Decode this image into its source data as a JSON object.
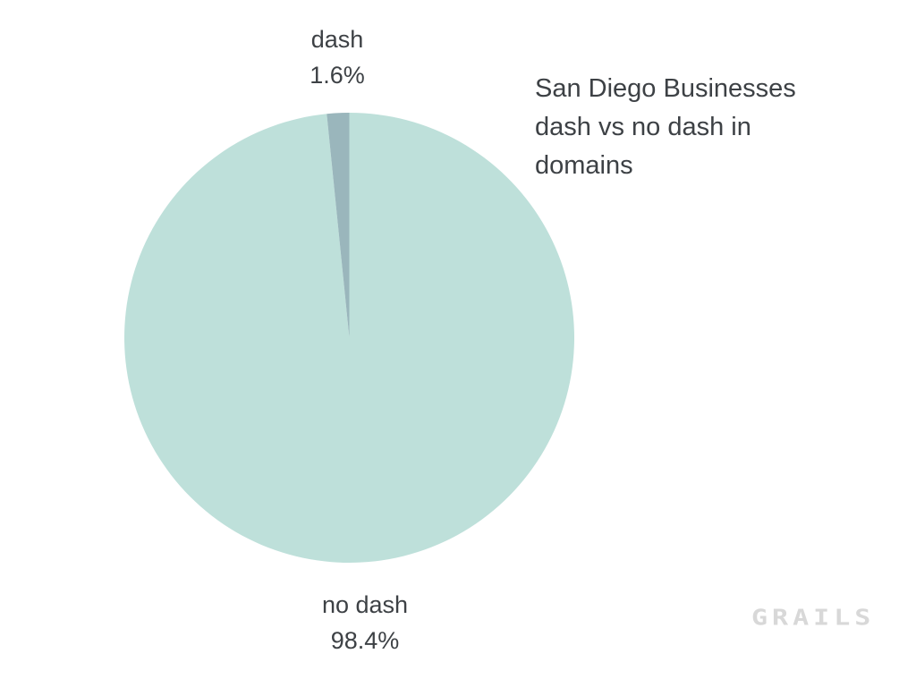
{
  "chart_data": {
    "type": "pie",
    "title": "San Diego Businesses dash vs no dash in domains",
    "title_lines": [
      "San Diego Businesses",
      "dash vs no dash in",
      "domains"
    ],
    "slices": [
      {
        "label": "no dash",
        "value": 98.4,
        "display": "98.4%",
        "color": "#bee0da"
      },
      {
        "label": "dash",
        "value": 1.6,
        "display": "1.6%",
        "color": "#9ab6bc"
      }
    ],
    "start_angle_deg": 0,
    "direction": "clockwise",
    "legend": "none",
    "labels_position": "outside",
    "background": "#ffffff",
    "text_color": "#3d4145"
  },
  "watermark": {
    "text": "GRAILS",
    "color": "#d8d8d8"
  }
}
